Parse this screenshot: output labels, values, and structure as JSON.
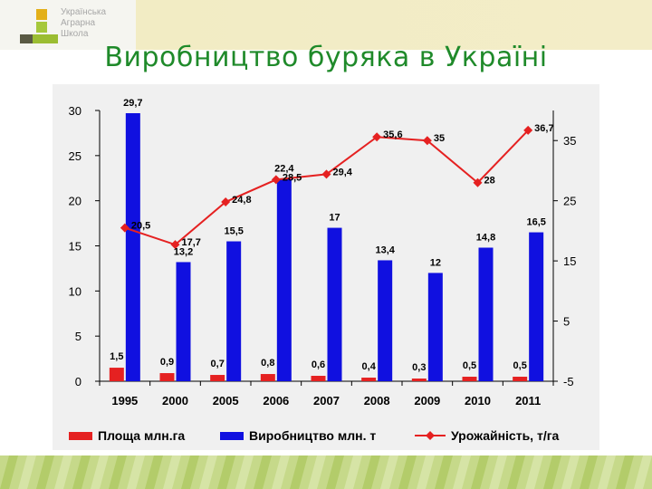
{
  "logo": {
    "lines": [
      "Українська",
      "Аграрна",
      "Школа"
    ]
  },
  "title": "Виробництво буряка в Україні",
  "colors": {
    "area": "#e52121",
    "production": "#1010e0",
    "yield": "#e52121",
    "title": "#1f8a2a"
  },
  "chart_data": {
    "type": "bar",
    "categories": [
      "1995",
      "2000",
      "2005",
      "2006",
      "2007",
      "2008",
      "2009",
      "2010",
      "2011"
    ],
    "series": [
      {
        "name": "Площа млн.га",
        "kind": "bar",
        "axis": "left",
        "color": "#e52121",
        "values": [
          1.5,
          0.9,
          0.7,
          0.8,
          0.6,
          0.4,
          0.3,
          0.5,
          0.5
        ],
        "labels": [
          "1,5",
          "0,9",
          "0,7",
          "0,8",
          "0,6",
          "0,4",
          "0,3",
          "0,5",
          "0,5"
        ]
      },
      {
        "name": "Виробництво млн. т",
        "kind": "bar",
        "axis": "left",
        "color": "#1010e0",
        "values": [
          29.7,
          13.2,
          15.5,
          22.4,
          17,
          13.4,
          12,
          14.8,
          16.5
        ],
        "labels": [
          "29,7",
          "13,2",
          "15,5",
          "22,4",
          "17",
          "13,4",
          "12",
          "14,8",
          "16,5"
        ]
      },
      {
        "name": "Урожайність, т/га",
        "kind": "line",
        "axis": "right",
        "color": "#e52121",
        "values": [
          20.5,
          17.7,
          24.8,
          28.5,
          29.4,
          35.6,
          35,
          28,
          36.7
        ],
        "labels": [
          "20,5",
          "17,7",
          "24,8",
          "28,5",
          "29,4",
          "35,6",
          "35",
          "28",
          "36,7"
        ]
      }
    ],
    "y_left": {
      "ylim": [
        0,
        30
      ],
      "ticks": [
        0,
        5,
        10,
        15,
        20,
        25,
        30
      ]
    },
    "y_right": {
      "ylim": [
        -5,
        40
      ],
      "ticks": [
        -5,
        5,
        15,
        25,
        35
      ]
    },
    "legend_position": "bottom",
    "grid": false
  }
}
